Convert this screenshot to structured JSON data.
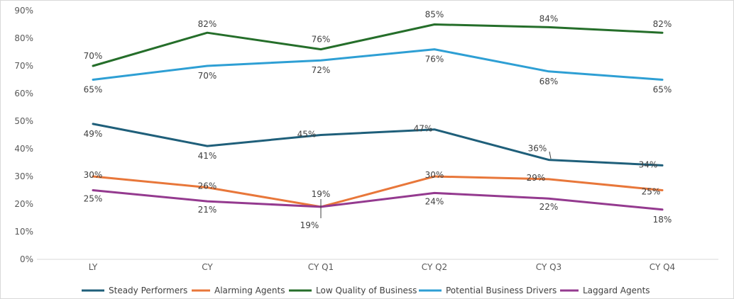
{
  "chart_data": {
    "type": "line",
    "title": "",
    "xlabel": "",
    "ylabel": "",
    "categories": [
      "LY",
      "CY",
      "CY Q1",
      "CY Q2",
      "CY Q3",
      "CY Q4"
    ],
    "ylim": [
      0,
      90
    ],
    "yticks": [
      0,
      10,
      20,
      30,
      40,
      50,
      60,
      70,
      80,
      90
    ],
    "ytick_labels": [
      "0%",
      "10%",
      "20%",
      "30%",
      "40%",
      "50%",
      "60%",
      "70%",
      "80%",
      "90%"
    ],
    "grid": false,
    "legend_position": "bottom",
    "series": [
      {
        "name": "Steady Performers",
        "color": "#1f5f7a",
        "values": [
          49,
          41,
          45,
          47,
          36,
          34
        ],
        "labels": [
          "49%",
          "41%",
          "45%",
          "47%",
          "36%",
          "34%"
        ]
      },
      {
        "name": "Alarming Agents",
        "color": "#e8773a",
        "values": [
          30,
          26,
          19,
          30,
          29,
          25
        ],
        "labels": [
          "30%",
          "26%",
          "19%",
          "30%",
          "29%",
          "25%"
        ]
      },
      {
        "name": "Low Quality of Business",
        "color": "#256e2a",
        "values": [
          70,
          82,
          76,
          85,
          84,
          82
        ],
        "labels": [
          "70%",
          "82%",
          "76%",
          "85%",
          "84%",
          "82%"
        ]
      },
      {
        "name": "Potential Business Drivers",
        "color": "#2e9fd4",
        "values": [
          65,
          70,
          72,
          76,
          68,
          65
        ],
        "labels": [
          "65%",
          "70%",
          "72%",
          "76%",
          "68%",
          "65%"
        ]
      },
      {
        "name": "Laggard Agents",
        "color": "#943a8f",
        "values": [
          25,
          21,
          19,
          24,
          22,
          18
        ],
        "labels": [
          "25%",
          "21%",
          "19%",
          "24%",
          "22%",
          "18%"
        ]
      }
    ]
  }
}
